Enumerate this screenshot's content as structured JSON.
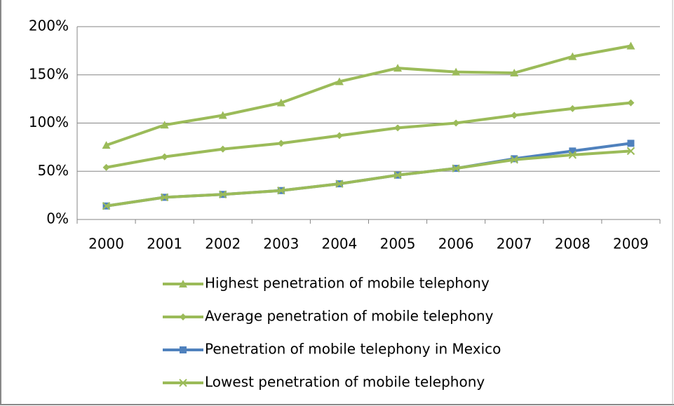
{
  "chart_data": {
    "type": "line",
    "categories": [
      "2000",
      "2001",
      "2002",
      "2003",
      "2004",
      "2005",
      "2006",
      "2007",
      "2008",
      "2009"
    ],
    "series": [
      {
        "name": "Highest penetration of mobile telephony",
        "color": "#9bbb59",
        "marker": "triangle",
        "values": [
          77,
          98,
          108,
          121,
          143,
          157,
          153,
          152,
          169,
          180
        ]
      },
      {
        "name": "Average penetration of mobile telephony",
        "color": "#9bbb59",
        "marker": "diamond",
        "values": [
          54,
          65,
          73,
          79,
          87,
          95,
          100,
          108,
          115,
          121
        ]
      },
      {
        "name": "Penetration of mobile telephony in Mexico",
        "color": "#4f81bd",
        "marker": "square",
        "values": [
          14,
          23,
          26,
          30,
          37,
          46,
          53,
          63,
          71,
          79
        ]
      },
      {
        "name": "Lowest penetration of mobile telephony",
        "color": "#9bbb59",
        "marker": "x",
        "values": [
          14,
          23,
          26,
          30,
          37,
          46,
          53,
          62,
          67,
          71
        ]
      }
    ],
    "ylim": [
      0,
      200
    ],
    "yticks": [
      {
        "value": 0,
        "label": "0%"
      },
      {
        "value": 50,
        "label": "50%"
      },
      {
        "value": 100,
        "label": "100%"
      },
      {
        "value": 150,
        "label": "150%"
      },
      {
        "value": 200,
        "label": "200%"
      }
    ],
    "grid": true,
    "legend": "bottom"
  }
}
